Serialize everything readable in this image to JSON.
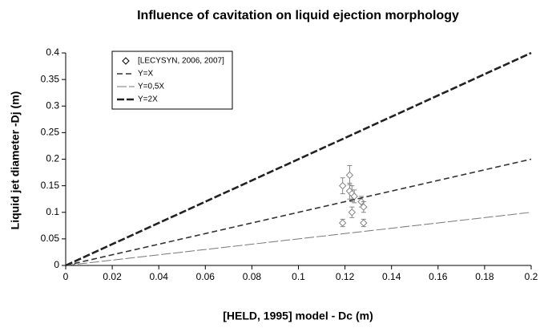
{
  "chart_data": {
    "type": "scatter",
    "title": "Influence of cavitation on liquid ejection morphology",
    "xlabel": "[HELD, 1995] model - Dc (m)",
    "ylabel": "Liquid jet diameter -Dj (m)",
    "xlim": [
      0,
      0.2
    ],
    "xticks": [
      0,
      0.02,
      0.04,
      0.06,
      0.08,
      0.1,
      0.12,
      0.14,
      0.16,
      0.18,
      0.2
    ],
    "ylim": [
      0,
      0.4
    ],
    "yticks": [
      0,
      0.05,
      0.1,
      0.15,
      0.2,
      0.25,
      0.3,
      0.35,
      0.4
    ],
    "legend": "top-left",
    "series": [
      {
        "name": "[LECYSYN, 2006, 2007]",
        "type": "scatter",
        "color": "#888888",
        "x": [
          0.119,
          0.119,
          0.122,
          0.122,
          0.123,
          0.123,
          0.124,
          0.127,
          0.128,
          0.128
        ],
        "values": [
          0.15,
          0.08,
          0.17,
          0.14,
          0.1,
          0.135,
          0.13,
          0.12,
          0.11,
          0.08
        ],
        "errors": [
          0.015,
          0.007,
          0.018,
          0.015,
          0.01,
          0.015,
          0.012,
          0.01,
          0.01,
          0.007
        ]
      },
      {
        "name": "Y=X",
        "type": "line",
        "color": "#333333",
        "x": [
          0,
          0.2
        ],
        "values": [
          0,
          0.2
        ]
      },
      {
        "name": "Y=0,5X",
        "type": "line",
        "color": "#777777",
        "x": [
          0,
          0.2
        ],
        "values": [
          0,
          0.1
        ]
      },
      {
        "name": "Y=2X",
        "type": "line",
        "color": "#222222",
        "x": [
          0,
          0.2
        ],
        "values": [
          0,
          0.4
        ]
      }
    ]
  }
}
